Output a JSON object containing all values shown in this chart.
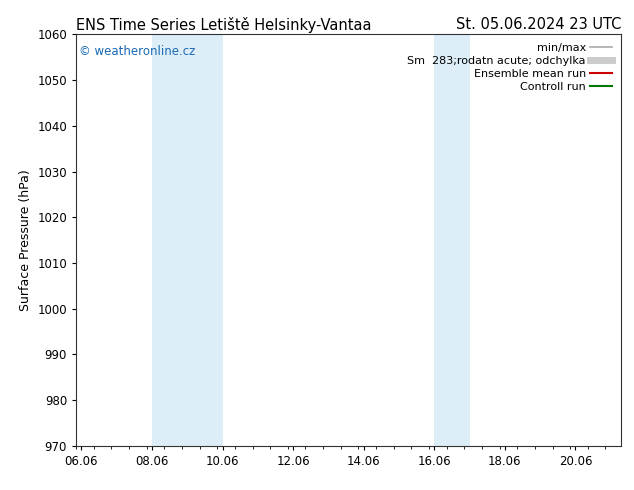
{
  "title_left": "ENS Time Series Letiště Helsinky-Vantaa",
  "title_right": "St. 05.06.2024 23 UTC",
  "ylabel": "Surface Pressure (hPa)",
  "ylim": [
    970,
    1060
  ],
  "yticks": [
    970,
    980,
    990,
    1000,
    1010,
    1020,
    1030,
    1040,
    1050,
    1060
  ],
  "xtick_labels": [
    "06.06",
    "08.06",
    "10.06",
    "12.06",
    "14.06",
    "16.06",
    "18.06",
    "20.06"
  ],
  "xtick_positions": [
    0,
    2,
    4,
    6,
    8,
    10,
    12,
    14
  ],
  "xlim": [
    -0.15,
    15.3
  ],
  "shaded_regions": [
    {
      "x_start": 2,
      "x_end": 4,
      "color": "#ddeef9"
    },
    {
      "x_start": 10,
      "x_end": 11,
      "color": "#ddeef9"
    }
  ],
  "watermark_text": "© weatheronline.cz",
  "watermark_color": "#1a6ab5",
  "legend_entries": [
    {
      "label": "min/max",
      "color": "#aaaaaa",
      "lw": 1.2,
      "style": "-"
    },
    {
      "label": "Sm  283;rodatn acute; odchylka",
      "color": "#cccccc",
      "lw": 5,
      "style": "-"
    },
    {
      "label": "Ensemble mean run",
      "color": "#cc0000",
      "lw": 1.5,
      "style": "-"
    },
    {
      "label": "Controll run",
      "color": "#007700",
      "lw": 1.5,
      "style": "-"
    }
  ],
  "bg_color": "#ffffff",
  "plot_bg_color": "#ffffff",
  "title_fontsize": 10.5,
  "axis_label_fontsize": 9,
  "tick_fontsize": 8.5,
  "legend_fontsize": 8
}
